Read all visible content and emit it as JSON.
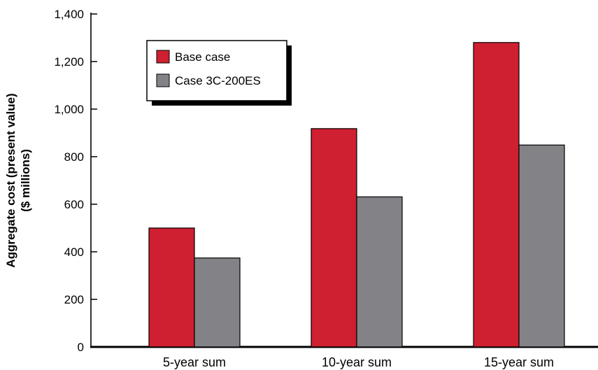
{
  "chart_data": {
    "type": "bar",
    "title": "",
    "ylabel_lines": [
      "Aggregate cost (present value)",
      "($ millions)"
    ],
    "xlabel": "",
    "categories": [
      "5-year sum",
      "10-year sum",
      "15-year sum"
    ],
    "series": [
      {
        "name": "Base case",
        "color": "#CE2030",
        "values": [
          500,
          918,
          1280
        ]
      },
      {
        "name": "Case 3C-200ES",
        "color": "#838387",
        "values": [
          374,
          631,
          849
        ]
      }
    ],
    "ylim": [
      0,
      1400
    ],
    "yticks": [
      0,
      200,
      400,
      600,
      800,
      1000,
      1200,
      1400
    ],
    "ytick_labels": [
      "0",
      "200",
      "400",
      "600",
      "800",
      "1,000",
      "1,200",
      "1,400"
    ],
    "grid": false,
    "legend_position": "top-left"
  }
}
